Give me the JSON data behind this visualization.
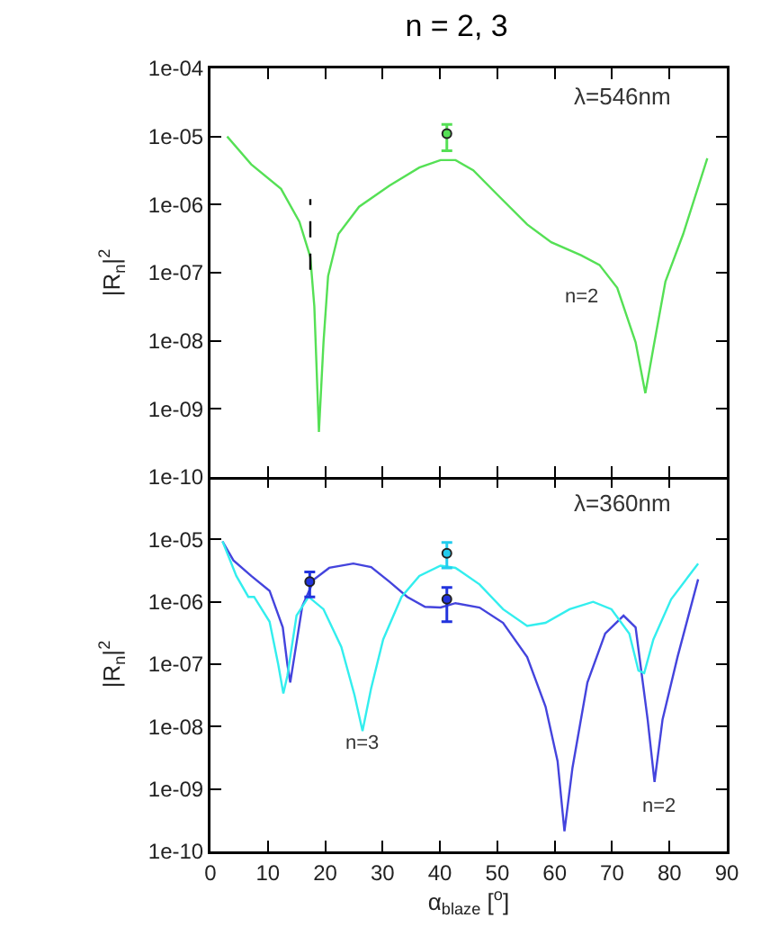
{
  "chart_data": [
    {
      "type": "line",
      "title": "n = 2, 3",
      "ylabel": "|R$_{n}$|$^{2}$",
      "log": "y",
      "tick_labels": "y",
      "xlim": [
        0,
        90
      ],
      "xticks": [
        {
          "value": 0,
          "label": null
        },
        {
          "value": 10,
          "label": null
        },
        {
          "value": 20,
          "label": null
        },
        {
          "value": 30,
          "label": null
        },
        {
          "value": 40,
          "label": null
        },
        {
          "value": 50,
          "label": null
        },
        {
          "value": 60,
          "label": null
        },
        {
          "value": 70,
          "label": null
        },
        {
          "value": 80,
          "label": null
        },
        {
          "value": 90,
          "label": null
        }
      ],
      "ylim": [
        1e-10,
        0.0001
      ],
      "yticks": [
        {
          "value": 1e-10,
          "label": "1e-10"
        },
        {
          "value": 1e-09,
          "label": "1e-09"
        },
        {
          "value": 1e-08,
          "label": "1e-08"
        },
        {
          "value": 1e-07,
          "label": "1e-07"
        },
        {
          "value": 1e-06,
          "label": "1e-06"
        },
        {
          "value": 1e-05,
          "label": "1e-05"
        },
        {
          "value": 0.0001,
          "label": "1e-04"
        }
      ],
      "annotations": [
        "λ=546nm",
        "n=2"
      ],
      "series": [
        {
          "color": "#55e055",
          "marker": "none",
          "x": [
            2.9,
            7.1,
            12.3,
            15.5,
            17.4,
            18.1,
            18.9,
            19.7,
            20.5,
            22.3,
            25.9,
            31.2,
            36.4,
            40.1,
            42.7,
            45.8,
            50,
            55.2,
            59.4,
            64.6,
            67.8,
            70.9,
            74.1,
            75.8,
            77.2,
            79.3,
            82.4,
            86.6
          ],
          "values": [
            1e-05,
            3.9e-06,
            1.7e-06,
            5.6e-07,
            1.7e-07,
            3.2e-08,
            4.6e-10,
            9.5e-09,
            8.9e-08,
            3.7e-07,
            9.3e-07,
            1.9e-06,
            3.5e-06,
            4.5e-06,
            4.5e-06,
            3.2e-06,
            1.4e-06,
            5.1e-07,
            2.8e-07,
            1.8e-07,
            1.3e-07,
            6e-08,
            9.5e-09,
            1.7e-09,
            7.9e-09,
            7.4e-08,
            3.7e-07,
            4.8e-06
          ]
        },
        {
          "color": "#000000",
          "marker": "none",
          "line_style": "dashed",
          "x": [
            17.4,
            17.4
          ],
          "values": [
            1.1e-07,
            1.2e-06
          ]
        },
        {
          "type": "scatter",
          "color": "#55e055",
          "marker": "circle",
          "x": [
            41.2
          ],
          "values": [
            1.1e-05
          ],
          "errors": [
            [
              6.2e-06,
              1.5e-05
            ]
          ]
        }
      ]
    },
    {
      "type": "line",
      "xlabel": "α$_{blaze}$ [$^{o}$]",
      "ylabel": "|R$_{n}$|$^{2}$",
      "log": "y",
      "xlim": [
        0,
        90
      ],
      "xticks": [
        0,
        10,
        20,
        30,
        40,
        50,
        60,
        70,
        80,
        90
      ],
      "ylim": [
        1e-10,
        0.0001
      ],
      "yticks": [
        {
          "value": 1e-10,
          "label": "1e-10"
        },
        {
          "value": 1e-09,
          "label": "1e-09"
        },
        {
          "value": 1e-08,
          "label": "1e-08"
        },
        {
          "value": 1e-07,
          "label": "1e-07"
        },
        {
          "value": 1e-06,
          "label": "1e-06"
        },
        {
          "value": 1e-05,
          "label": "1e-05"
        },
        {
          "value": 0.0001,
          "label": null
        }
      ],
      "annotations": [
        "λ=360nm",
        "n=3",
        "n=2"
      ],
      "series": [
        {
          "color": "#4444dd",
          "marker": "none",
          "x": [
            2.1,
            4.0,
            7.1,
            10.3,
            12.6,
            13.4,
            13.9,
            14.6,
            16.0,
            18.1,
            20.7,
            24.9,
            28.0,
            31.2,
            34.3,
            37.4,
            40.1,
            42.7,
            46.9,
            51.0,
            55.2,
            58.4,
            60.5,
            61.7,
            63.1,
            65.7,
            68.8,
            72.0,
            74.1,
            76.2,
            77.4,
            78.8,
            81.4,
            85.0
          ],
          "values": [
            9.3e-06,
            4.6e-06,
            2.6e-06,
            1.5e-06,
            3.9e-07,
            1e-07,
            5.1e-08,
            1.3e-07,
            8.5e-07,
            2.3e-06,
            3.5e-06,
            4.1e-06,
            3.6e-06,
            2.1e-06,
            1.2e-06,
            8.3e-07,
            8.1e-07,
            9.5e-07,
            8.1e-07,
            4.6e-07,
            1.3e-07,
            2.1e-08,
            2.8e-09,
            2.1e-10,
            2.2e-09,
            5.1e-08,
            3.1e-07,
            6e-07,
            3.9e-07,
            1.3e-08,
            1.3e-09,
            1.3e-08,
            1.3e-07,
            2.3e-06
          ]
        },
        {
          "color": "#33eeee",
          "marker": "none",
          "x": [
            2.1,
            4.5,
            6.6,
            7.6,
            10.3,
            11.8,
            12.7,
            13.4,
            15.0,
            17.1,
            19.7,
            22.8,
            25.1,
            26.5,
            28.0,
            30.1,
            33.3,
            36.4,
            40.1,
            42.7,
            46.9,
            51.0,
            55.2,
            58.4,
            62.6,
            66.7,
            69.9,
            73.0,
            74.6,
            75.6,
            77.2,
            80.3,
            85.0
          ],
          "values": [
            9.3e-06,
            2.6e-06,
            1.2e-06,
            1.2e-06,
            4.8e-07,
            1e-07,
            3.4e-08,
            6.5e-08,
            6e-07,
            1.2e-06,
            7.6e-07,
            1.9e-07,
            3.2e-08,
            8.5e-09,
            4.1e-08,
            2.5e-07,
            1.2e-06,
            2.6e-06,
            3.8e-06,
            3.5e-06,
            1.9e-06,
            7.6e-07,
            4.1e-07,
            4.6e-07,
            7.6e-07,
            1e-06,
            7.6e-07,
            3.1e-07,
            7.9e-08,
            7.2e-08,
            2.5e-07,
            1.1e-06,
            4.1e-06
          ]
        },
        {
          "type": "scatter",
          "color": "#2233dd",
          "marker": "circle",
          "x": [
            17.3,
            41.2
          ],
          "values": [
            2.1e-06,
            1.1e-06
          ],
          "errors": [
            [
              1.2e-06,
              3e-06
            ],
            [
              4.8e-07,
              1.7e-06
            ]
          ]
        },
        {
          "type": "scatter",
          "color": "#22ccee",
          "marker": "circle",
          "x": [
            41.2
          ],
          "values": [
            6e-06
          ],
          "errors": [
            [
              3.5e-06,
              8.9e-06
            ]
          ]
        }
      ]
    }
  ]
}
